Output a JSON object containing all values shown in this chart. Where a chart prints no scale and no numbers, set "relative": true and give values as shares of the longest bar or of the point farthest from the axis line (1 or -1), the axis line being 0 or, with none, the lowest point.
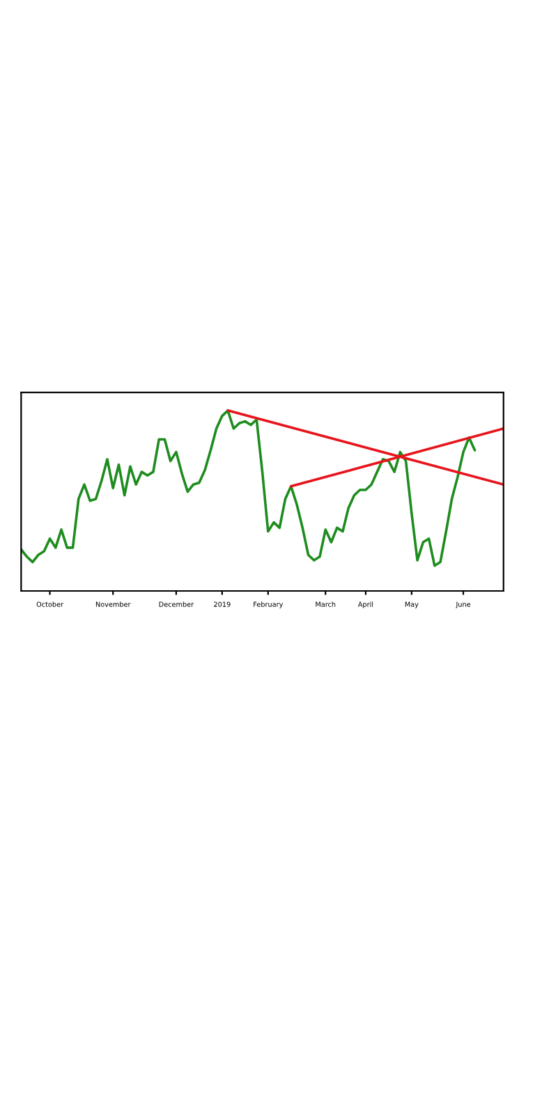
{
  "chart_data": {
    "type": "line",
    "relative": true,
    "grid": false,
    "legend": false,
    "marker": "none",
    "line_style": "solid",
    "categories": [
      null,
      null,
      null,
      null,
      null,
      "October",
      null,
      null,
      null,
      null,
      null,
      null,
      null,
      null,
      null,
      null,
      "November",
      null,
      null,
      null,
      null,
      null,
      null,
      null,
      null,
      null,
      null,
      "December",
      null,
      null,
      null,
      null,
      null,
      null,
      null,
      "2019",
      null,
      null,
      null,
      null,
      null,
      null,
      null,
      "February",
      null,
      null,
      null,
      null,
      null,
      null,
      null,
      null,
      null,
      "March",
      null,
      null,
      null,
      null,
      null,
      null,
      "April",
      null,
      null,
      null,
      null,
      null,
      null,
      null,
      "May",
      null,
      null,
      null,
      null,
      null,
      null,
      null,
      null,
      "June",
      null,
      null,
      null,
      null,
      null,
      null,
      null
    ],
    "series": [
      {
        "values": [
          0.23,
          0.19,
          0.16,
          0.2,
          0.22,
          0.29,
          0.24,
          0.34,
          0.24,
          0.24,
          0.51,
          0.59,
          0.5,
          0.51,
          0.61,
          0.73,
          0.57,
          0.7,
          0.53,
          0.69,
          0.59,
          0.66,
          0.64,
          0.66,
          0.84,
          0.84,
          0.72,
          0.77,
          0.65,
          0.55,
          0.59,
          0.6,
          0.67,
          0.78,
          0.9,
          0.97,
          1.0,
          0.9,
          0.93,
          0.94,
          0.92,
          0.95,
          0.66,
          0.33,
          0.38,
          0.35,
          0.51,
          0.58,
          0.48,
          0.35,
          0.2,
          0.17,
          0.19,
          0.34,
          0.27,
          0.35,
          0.33,
          0.46,
          0.53,
          0.56,
          0.56,
          0.59,
          0.66,
          0.73,
          0.72,
          0.66,
          0.77,
          0.72,
          0.43,
          0.17,
          0.27,
          0.29,
          0.14,
          0.16,
          0.33,
          0.51,
          0.63,
          0.77,
          0.85,
          0.78,
          null,
          null,
          null,
          null,
          null
        ],
        "color": "#1e8c1e"
      },
      {
        "color": "#e8141c",
        "values": [
          null,
          null,
          null,
          null,
          null,
          null,
          null,
          null,
          null,
          null,
          null,
          null,
          null,
          null,
          null,
          null,
          null,
          null,
          null,
          null,
          null,
          null,
          null,
          null,
          null,
          null,
          null,
          null,
          null,
          null,
          null,
          null,
          null,
          null,
          null,
          null,
          1.0,
          null,
          null,
          null,
          null,
          null,
          null,
          null,
          null,
          null,
          null,
          null,
          null,
          null,
          null,
          null,
          null,
          null,
          null,
          null,
          null,
          null,
          null,
          null,
          null,
          null,
          null,
          null,
          null,
          null,
          null,
          null,
          null,
          null,
          null,
          null,
          null,
          null,
          null,
          null,
          null,
          null,
          null,
          null,
          null,
          null,
          null,
          null,
          0.59
        ]
      },
      {
        "color": "#e8141c",
        "values": [
          null,
          null,
          null,
          null,
          null,
          null,
          null,
          null,
          null,
          null,
          null,
          null,
          null,
          null,
          null,
          null,
          null,
          null,
          null,
          null,
          null,
          null,
          null,
          null,
          null,
          null,
          null,
          null,
          null,
          null,
          null,
          null,
          null,
          null,
          null,
          null,
          null,
          null,
          null,
          null,
          null,
          null,
          null,
          null,
          null,
          null,
          null,
          0.58,
          null,
          null,
          null,
          null,
          null,
          null,
          null,
          null,
          null,
          null,
          null,
          null,
          null,
          null,
          null,
          null,
          null,
          null,
          null,
          null,
          null,
          null,
          null,
          null,
          null,
          null,
          null,
          null,
          null,
          null,
          null,
          null,
          null,
          null,
          null,
          null,
          0.9
        ]
      }
    ]
  }
}
